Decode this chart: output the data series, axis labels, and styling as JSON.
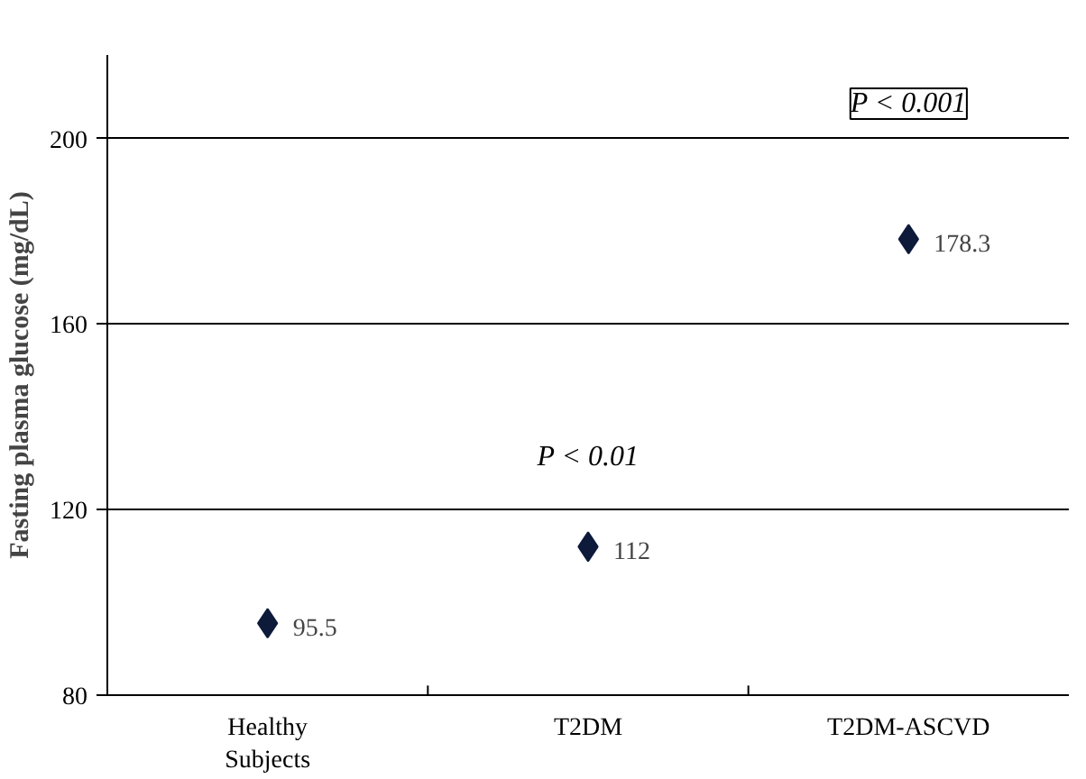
{
  "chart_data": {
    "type": "scatter",
    "ylabel": "Fasting plasma glucose (mg/dL)",
    "categories": [
      "Healthy Subjects",
      "T2DM",
      "T2DM-ASCVD"
    ],
    "values": [
      95.5,
      112,
      178.3
    ],
    "color": "#0d1a3a",
    "marker": "diamond",
    "data_labels": true,
    "ylim": [
      80,
      218
    ],
    "yticks": [
      80,
      120,
      160,
      200
    ],
    "grid": "y",
    "annotations": [
      "P < 0.01",
      "P < 0.001"
    ]
  }
}
